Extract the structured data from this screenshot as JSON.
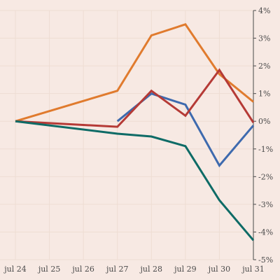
{
  "chart_data": {
    "type": "line",
    "title": "",
    "xlabel": "",
    "ylabel": "",
    "x": [
      "jul 24",
      "jul 25",
      "jul 26",
      "jul 27",
      "jul 28",
      "jul 29",
      "jul 30",
      "jul 31"
    ],
    "y_ticks": [
      4,
      3,
      2,
      1,
      0,
      -1,
      -2,
      -3,
      -4,
      -5
    ],
    "y_tick_labels": [
      "4%",
      "3%",
      "2%",
      "1%",
      "0%",
      "-1%",
      "-2%",
      "-3%",
      "-4%",
      "-5%"
    ],
    "ylim": [
      -5,
      4
    ],
    "y_axis_position": "right",
    "grid": true,
    "legend": "none",
    "series": [
      {
        "color": "#e07b2e",
        "points": [
          [
            0,
            0
          ],
          [
            3,
            1.1
          ],
          [
            4,
            3.1
          ],
          [
            5,
            3.5
          ],
          [
            6,
            1.7
          ],
          [
            7,
            0.7
          ]
        ]
      },
      {
        "color": "#3e6aae",
        "points": [
          [
            3,
            0
          ],
          [
            4,
            1.0
          ],
          [
            5,
            0.6
          ],
          [
            6,
            -1.6
          ],
          [
            7,
            -0.15
          ]
        ]
      },
      {
        "color": "#b53a36",
        "points": [
          [
            0,
            0
          ],
          [
            3,
            -0.2
          ],
          [
            4,
            1.1
          ],
          [
            5,
            0.2
          ],
          [
            6,
            1.85
          ],
          [
            7,
            -0.05
          ]
        ]
      },
      {
        "color": "#0e6b66",
        "points": [
          [
            0,
            0
          ],
          [
            3,
            -0.45
          ],
          [
            4,
            -0.55
          ],
          [
            5,
            -0.9
          ],
          [
            6,
            -2.85
          ],
          [
            7,
            -4.3
          ]
        ]
      }
    ]
  }
}
